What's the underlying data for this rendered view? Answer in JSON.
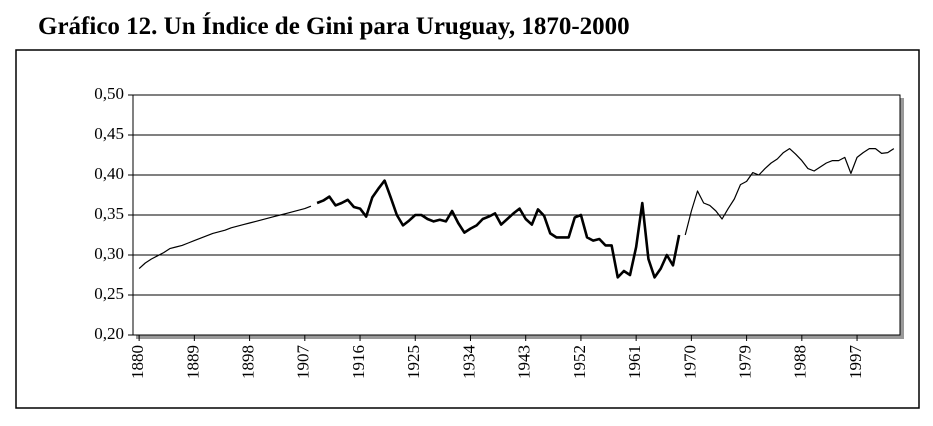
{
  "chart_data": {
    "type": "line",
    "title": "Gráfico 12. Un Índice de Gini para Uruguay, 1870-2000",
    "xlim": [
      1879,
      2004
    ],
    "xticks": [
      1880,
      1889,
      1898,
      1907,
      1916,
      1925,
      1934,
      1943,
      1952,
      1961,
      1970,
      1979,
      1988,
      1997
    ],
    "ylim": [
      0.2,
      0.5
    ],
    "yticks": [
      {
        "value": 0.2,
        "label": "0,20"
      },
      {
        "value": 0.25,
        "label": "0,25"
      },
      {
        "value": 0.3,
        "label": "0,30"
      },
      {
        "value": 0.35,
        "label": "0,35"
      },
      {
        "value": 0.4,
        "label": "0,40"
      },
      {
        "value": 0.45,
        "label": "0,45"
      },
      {
        "value": 0.5,
        "label": "0,50"
      }
    ],
    "grid": true,
    "series": [
      {
        "color": "#000000",
        "width": 1.2,
        "x": [
          1880,
          1881,
          1882,
          1883,
          1884,
          1885,
          1886,
          1887,
          1888,
          1889,
          1890,
          1891,
          1892,
          1893,
          1894,
          1895,
          1896,
          1897,
          1898,
          1899,
          1900,
          1901,
          1902,
          1903,
          1904,
          1905,
          1906,
          1907,
          1908
        ],
        "values": [
          0.283,
          0.29,
          0.295,
          0.299,
          0.303,
          0.308,
          0.31,
          0.312,
          0.315,
          0.318,
          0.321,
          0.324,
          0.327,
          0.329,
          0.331,
          0.334,
          0.336,
          0.338,
          0.34,
          0.342,
          0.344,
          0.346,
          0.348,
          0.35,
          0.352,
          0.354,
          0.356,
          0.358,
          0.361
        ]
      },
      {
        "color": "#000000",
        "width": 2.6,
        "x": [
          1909,
          1910,
          1911,
          1912,
          1913,
          1914,
          1915,
          1916,
          1917,
          1918,
          1919,
          1920,
          1921,
          1922,
          1923,
          1924,
          1925,
          1926,
          1927,
          1928,
          1929,
          1930,
          1931,
          1932,
          1933,
          1934,
          1935,
          1936,
          1937,
          1938,
          1939,
          1940,
          1941,
          1942,
          1943,
          1944,
          1945,
          1946,
          1947,
          1948,
          1949,
          1950,
          1951,
          1952,
          1953,
          1954,
          1955,
          1956,
          1957,
          1958,
          1959,
          1960,
          1961,
          1962,
          1963,
          1964,
          1965,
          1966,
          1967,
          1968
        ],
        "values": [
          0.365,
          0.368,
          0.373,
          0.362,
          0.365,
          0.369,
          0.36,
          0.358,
          0.348,
          0.372,
          0.383,
          0.393,
          0.372,
          0.35,
          0.337,
          0.343,
          0.35,
          0.35,
          0.345,
          0.342,
          0.344,
          0.342,
          0.355,
          0.34,
          0.328,
          0.333,
          0.337,
          0.345,
          0.348,
          0.352,
          0.338,
          0.345,
          0.352,
          0.358,
          0.345,
          0.338,
          0.357,
          0.349,
          0.327,
          0.322,
          0.322,
          0.322,
          0.347,
          0.35,
          0.322,
          0.318,
          0.32,
          0.312,
          0.312,
          0.272,
          0.28,
          0.275,
          0.31,
          0.365,
          0.295,
          0.272,
          0.283,
          0.3,
          0.287,
          0.325
        ]
      },
      {
        "color": "#000000",
        "width": 1.2,
        "x": [
          1969,
          1970,
          1971,
          1972,
          1973,
          1974,
          1975,
          1976,
          1977,
          1978,
          1979,
          1980,
          1981,
          1982,
          1983,
          1984,
          1985,
          1986,
          1987,
          1988,
          1989,
          1990,
          1991,
          1992,
          1993,
          1994,
          1995,
          1996,
          1997,
          1998,
          1999,
          2000,
          2001,
          2002,
          2003
        ],
        "values": [
          0.325,
          0.355,
          0.38,
          0.365,
          0.362,
          0.355,
          0.345,
          0.358,
          0.37,
          0.388,
          0.392,
          0.403,
          0.4,
          0.408,
          0.415,
          0.42,
          0.428,
          0.433,
          0.426,
          0.418,
          0.408,
          0.405,
          0.41,
          0.415,
          0.418,
          0.418,
          0.422,
          0.402,
          0.422,
          0.428,
          0.433,
          0.433,
          0.427,
          0.428,
          0.433
        ]
      }
    ]
  }
}
